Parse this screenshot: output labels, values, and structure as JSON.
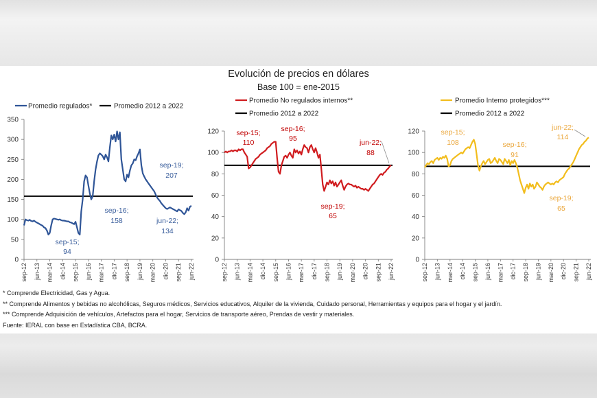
{
  "title": "Evolución de precios en dólares",
  "subtitle": "Base 100 = ene-2015",
  "footnotes": [
    "* Comprende Electricidad, Gas y Agua.",
    "** Comprende Alimentos y bebidas no alcohólicas, Seguros médicos, Servicios educativos, Alquiler de la vivienda, Cuidado personal, Herramientas y equipos para el hogar y el jardín.",
    "*** Comprende Adquisición de vehículos, Artefactos para el hogar, Servicios de transporte aéreo, Prendas de vestir y materiales.",
    "Fuente: IERAL con base en Estadística CBA, BCRA."
  ],
  "chart_data": [
    {
      "type": "line",
      "series": [
        {
          "name": "Promedio regulados*",
          "color": "#2f5597",
          "values": [
            85,
            100,
            98,
            97,
            99,
            96,
            95,
            97,
            94,
            92,
            90,
            88,
            86,
            84,
            80,
            78,
            72,
            62,
            66,
            85,
            100,
            102,
            101,
            100,
            99,
            100,
            98,
            97,
            97,
            96,
            95,
            95,
            93,
            92,
            90,
            88,
            94,
            80,
            66,
            62,
            120,
            150,
            195,
            210,
            205,
            185,
            165,
            150,
            158,
            195,
            225,
            245,
            260,
            265,
            262,
            258,
            250,
            262,
            255,
            245,
            280,
            310,
            300,
            312,
            295,
            320,
            300,
            318,
            250,
            225,
            200,
            195,
            212,
            205,
            222,
            235,
            240,
            250,
            248,
            258,
            265,
            275,
            235,
            215,
            207,
            200,
            195,
            190,
            185,
            180,
            175,
            170,
            162,
            155,
            150,
            146,
            140,
            136,
            132,
            128,
            126,
            128,
            130,
            128,
            126,
            124,
            122,
            120,
            125,
            123,
            121,
            116,
            113,
            118,
            128,
            122,
            132,
            134
          ]
        }
      ],
      "reference_line": {
        "name": "Promedio 2012 a 2022",
        "value": 158,
        "color": "#000000"
      },
      "x_tick_labels": [
        "sep-12",
        "jun-13",
        "mar-14",
        "dic-14",
        "sep-15",
        "jun-16",
        "mar-17",
        "dic-17",
        "sep-18",
        "jun-19",
        "mar-20",
        "dic-20",
        "sep-21",
        "jun-22"
      ],
      "months_per_x_tick": 9,
      "y_ticks": [
        0,
        50,
        100,
        150,
        200,
        250,
        300,
        350
      ],
      "ylim": [
        0,
        350
      ],
      "annotation_color": "#3a5e9c",
      "annotations": [
        {
          "label": "sep-15;",
          "value": 94
        },
        {
          "label": "sep-16;",
          "value": 158
        },
        {
          "label": "sep-19;",
          "value": 207
        },
        {
          "label": "jun-22;",
          "value": 134
        }
      ]
    },
    {
      "type": "line",
      "series": [
        {
          "name": "Promedio No regulados internos**",
          "color": "#d01c1f",
          "values": [
            100,
            101,
            100,
            101,
            101,
            102,
            101,
            102,
            102,
            101,
            103,
            102,
            103,
            103,
            100,
            98,
            96,
            85,
            86,
            88,
            90,
            92,
            94,
            95,
            96,
            98,
            99,
            100,
            101,
            102,
            104,
            105,
            106,
            108,
            109,
            110,
            110,
            95,
            82,
            80,
            88,
            92,
            96,
            97,
            95,
            98,
            100,
            97,
            95,
            103,
            100,
            102,
            99,
            101,
            98,
            103,
            107,
            105,
            104,
            100,
            105,
            107,
            103,
            100,
            104,
            100,
            95,
            98,
            85,
            70,
            64,
            68,
            72,
            70,
            74,
            71,
            73,
            69,
            72,
            68,
            70,
            72,
            74,
            69,
            65,
            68,
            70,
            71,
            70,
            70,
            69,
            68,
            69,
            67,
            68,
            67,
            66,
            66,
            65,
            66,
            65,
            64,
            66,
            68,
            70,
            71,
            73,
            75,
            77,
            79,
            80,
            79,
            81,
            82,
            84,
            85,
            87,
            88
          ]
        }
      ],
      "reference_line": {
        "name": "Promedio 2012 a 2022",
        "value": 88,
        "color": "#000000"
      },
      "x_tick_labels": [
        "sep-12",
        "jun-13",
        "mar-14",
        "dic-14",
        "sep-15",
        "jun-16",
        "mar-17",
        "dic-17",
        "sep-18",
        "jun-19",
        "mar-20",
        "dic-20",
        "sep-21",
        "jun-22"
      ],
      "months_per_x_tick": 9,
      "y_ticks": [
        0,
        20,
        40,
        60,
        80,
        100,
        120
      ],
      "ylim": [
        0,
        120
      ],
      "annotation_color": "#c00000",
      "annotations": [
        {
          "label": "sep-15;",
          "value": 110
        },
        {
          "label": "sep-16;",
          "value": 95
        },
        {
          "label": "jun-22;",
          "value": 88
        },
        {
          "label": "sep-19;",
          "value": 65
        }
      ]
    },
    {
      "type": "line",
      "series": [
        {
          "name": "Promedio Interno protegidos***",
          "color": "#f2bd1d",
          "values": [
            86,
            88,
            90,
            89,
            91,
            92,
            90,
            93,
            94,
            95,
            93,
            95,
            94,
            96,
            95,
            97,
            94,
            87,
            88,
            92,
            94,
            95,
            96,
            97,
            98,
            99,
            100,
            99,
            101,
            103,
            104,
            105,
            104,
            107,
            110,
            112,
            108,
            98,
            88,
            83,
            87,
            90,
            92,
            89,
            91,
            93,
            94,
            90,
            91,
            93,
            95,
            92,
            90,
            94,
            93,
            91,
            89,
            94,
            92,
            90,
            93,
            88,
            92,
            90,
            93,
            90,
            86,
            80,
            74,
            70,
            66,
            62,
            67,
            70,
            66,
            71,
            68,
            70,
            66,
            68,
            72,
            70,
            68,
            67,
            65,
            68,
            70,
            71,
            72,
            71,
            70,
            71,
            70,
            72,
            73,
            72,
            74,
            75,
            76,
            77,
            80,
            82,
            84,
            85,
            87,
            89,
            91,
            94,
            97,
            100,
            103,
            105,
            107,
            108,
            110,
            111,
            113,
            114
          ]
        }
      ],
      "reference_line": {
        "name": "Promedio 2012 a 2022",
        "value": 87,
        "color": "#000000"
      },
      "x_tick_labels": [
        "sep-12",
        "jun-13",
        "mar-14",
        "dic-14",
        "sep-15",
        "jun-16",
        "mar-17",
        "dic-17",
        "sep-18",
        "jun-19",
        "mar-20",
        "dic-20",
        "sep-21",
        "jun-22"
      ],
      "months_per_x_tick": 9,
      "y_ticks": [
        0,
        20,
        40,
        60,
        80,
        100,
        120
      ],
      "ylim": [
        0,
        120
      ],
      "annotation_color": "#eaa63a",
      "annotations": [
        {
          "label": "sep-15;",
          "value": 108
        },
        {
          "label": "sep-16;",
          "value": 91
        },
        {
          "label": "sep-19;",
          "value": 65
        },
        {
          "label": "jun-22;",
          "value": 114
        }
      ]
    }
  ]
}
